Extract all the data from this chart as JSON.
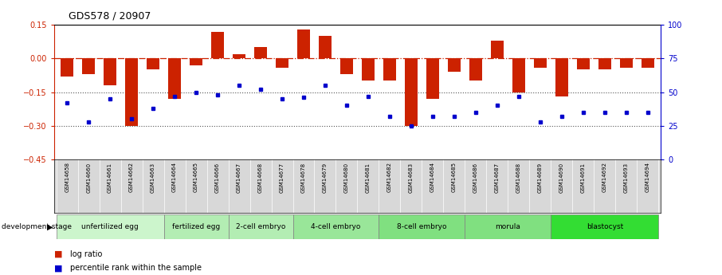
{
  "title": "GDS578 / 20907",
  "gsm_labels": [
    "GSM14658",
    "GSM14660",
    "GSM14661",
    "GSM14662",
    "GSM14663",
    "GSM14664",
    "GSM14665",
    "GSM14666",
    "GSM14667",
    "GSM14668",
    "GSM14677",
    "GSM14678",
    "GSM14679",
    "GSM14680",
    "GSM14681",
    "GSM14682",
    "GSM14683",
    "GSM14684",
    "GSM14685",
    "GSM14686",
    "GSM14687",
    "GSM14688",
    "GSM14689",
    "GSM14690",
    "GSM14691",
    "GSM14692",
    "GSM14693",
    "GSM14694"
  ],
  "log_ratio": [
    -0.08,
    -0.07,
    -0.12,
    -0.3,
    -0.05,
    -0.18,
    -0.03,
    0.12,
    0.02,
    0.05,
    -0.04,
    0.13,
    0.1,
    -0.07,
    -0.1,
    -0.1,
    -0.3,
    -0.18,
    -0.06,
    -0.1,
    0.08,
    -0.15,
    -0.04,
    -0.17,
    -0.05,
    -0.05,
    -0.04,
    -0.04
  ],
  "percentile_rank": [
    42,
    28,
    45,
    30,
    38,
    47,
    50,
    48,
    55,
    52,
    45,
    46,
    55,
    40,
    47,
    32,
    25,
    32,
    32,
    35,
    40,
    47,
    28,
    32,
    35,
    35,
    35,
    35
  ],
  "ylim_left": [
    -0.45,
    0.15
  ],
  "ylim_right": [
    0,
    100
  ],
  "bar_color": "#cc2200",
  "dot_color": "#0000cc",
  "hline_color": "#cc2200",
  "dotted_line_color": "#555555",
  "stage_groups": [
    {
      "label": "unfertilized egg",
      "start": 0,
      "end": 5,
      "color": "#ccf5cc"
    },
    {
      "label": "fertilized egg",
      "start": 5,
      "end": 8,
      "color": "#b3edb3"
    },
    {
      "label": "2-cell embryo",
      "start": 8,
      "end": 11,
      "color": "#b3edb3"
    },
    {
      "label": "4-cell embryo",
      "start": 11,
      "end": 15,
      "color": "#99e699"
    },
    {
      "label": "8-cell embryo",
      "start": 15,
      "end": 19,
      "color": "#80e080"
    },
    {
      "label": "morula",
      "start": 19,
      "end": 23,
      "color": "#80e080"
    },
    {
      "label": "blastocyst",
      "start": 23,
      "end": 28,
      "color": "#33dd33"
    }
  ],
  "legend_log_color": "#cc2200",
  "legend_dot_color": "#0000cc"
}
